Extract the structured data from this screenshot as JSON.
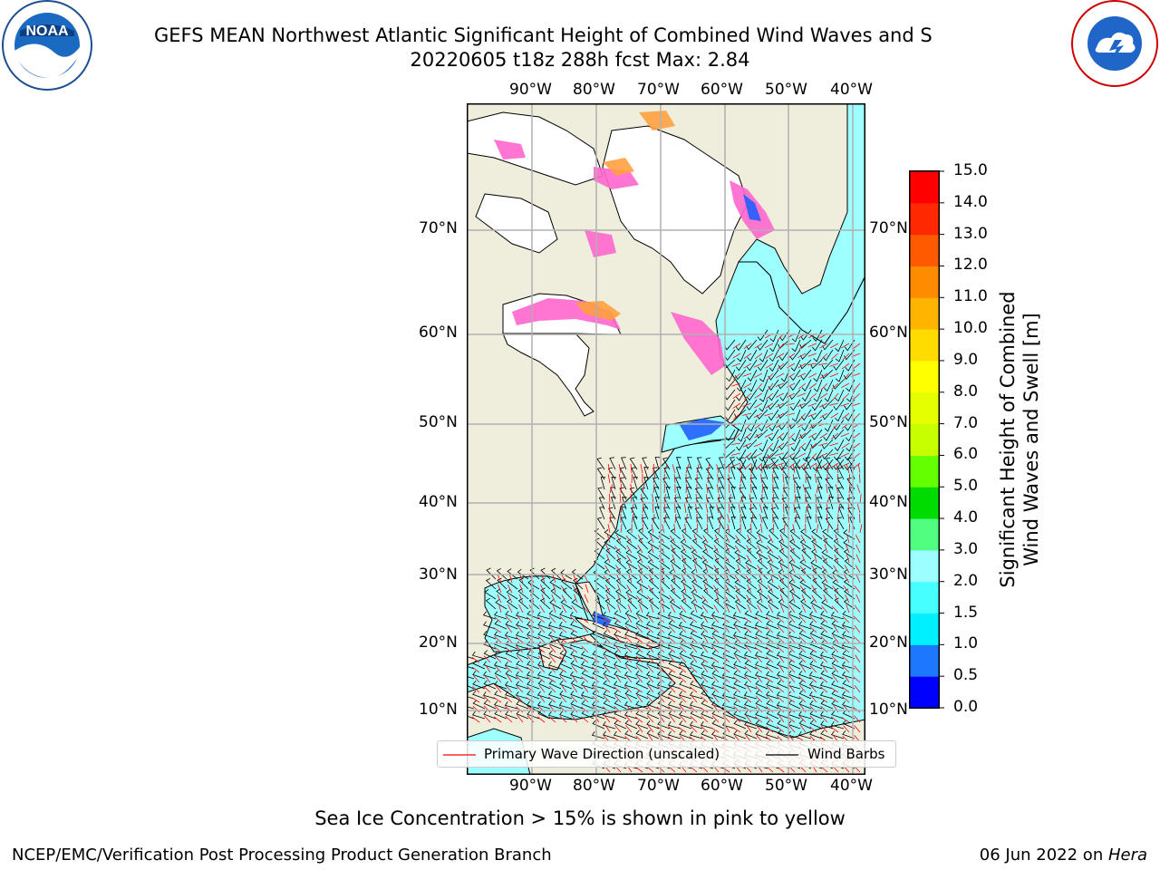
{
  "header": {
    "title_line1": "GEFS MEAN Northwest Atlantic Significant Height of Combined Wind Waves and S",
    "title_line2": "20220605 t18z 288h fcst   Max: 2.84"
  },
  "logos": {
    "left": "NOAA",
    "right": "NATIONAL WEATHER SERVICE"
  },
  "map": {
    "lon_labels": [
      "90°W",
      "80°W",
      "70°W",
      "60°W",
      "50°W",
      "40°W"
    ],
    "lat_labels": [
      "70°N",
      "60°N",
      "50°N",
      "40°N",
      "30°N",
      "20°N",
      "10°N"
    ]
  },
  "legend": {
    "wave_label": "Primary Wave Direction (unscaled)",
    "wind_label": "Wind Barbs"
  },
  "colorbar": {
    "label_line1": "Significant Height of Combined",
    "label_line2": "Wind Waves and Swell [m]",
    "ticks": [
      "0.0",
      "0.5",
      "1.0",
      "1.5",
      "2.0",
      "3.0",
      "4.0",
      "5.0",
      "6.0",
      "7.0",
      "8.0",
      "9.0",
      "10.0",
      "11.0",
      "12.0",
      "13.0",
      "14.0",
      "15.0"
    ],
    "colors": [
      "#0000ff",
      "#1e78ff",
      "#00f0ff",
      "#46ffff",
      "#9bffff",
      "#50ff80",
      "#00dc00",
      "#64ff00",
      "#c8ff00",
      "#e6ff00",
      "#ffff00",
      "#ffdc00",
      "#ffb400",
      "#ff8c00",
      "#ff5a00",
      "#ff2800",
      "#ff0000"
    ]
  },
  "footer": {
    "note": "Sea Ice Concentration > 15% is shown in pink to yellow",
    "left": "NCEP/EMC/Verification Post Processing Product Generation Branch",
    "right_prefix": "06 Jun 2022 on ",
    "right_host": "Hera"
  },
  "colors": {
    "land": "#efeddc",
    "ocean": "#9effff",
    "ice_pink": "#ff66cc",
    "ice_orange": "#ffa040",
    "wave_arrow": "#ff0000",
    "barb": "#000000",
    "grid": "#b0b0b0"
  }
}
